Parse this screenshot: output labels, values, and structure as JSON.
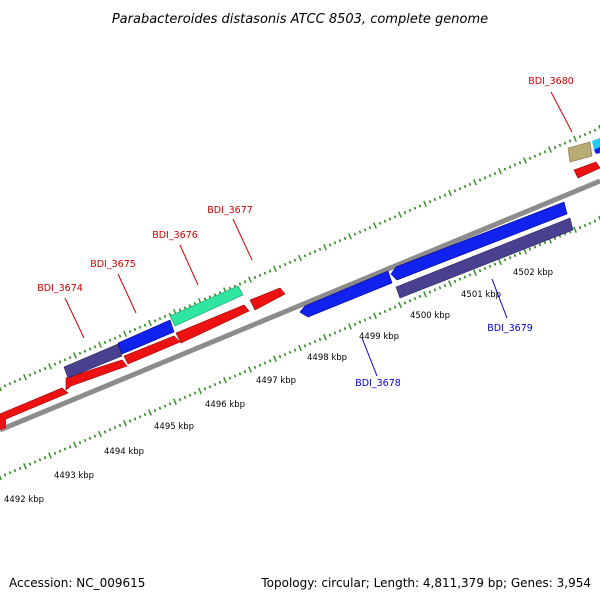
{
  "title": "Parabacteroides distasonis ATCC 8503, complete genome",
  "footer": {
    "accession": "Accession: NC_009615",
    "summary": "Topology: circular; Length: 4,811,379 bp; Genes: 3,954"
  },
  "colors": {
    "backbone": "#8c8c8c",
    "tick_dots": "#2e8b1e",
    "forward_label": "#cc0000",
    "reverse_label": "#0000cc",
    "cds_red": "#ee1111",
    "cds_blue": "#1122ee",
    "cds_slate": "#4a4090",
    "cds_green": "#2ee6a0",
    "cds_tan": "#b8ab74",
    "cds_cyan": "#22ccee"
  },
  "ticks": [
    {
      "label": "4492 kbp"
    },
    {
      "label": "4493 kbp"
    },
    {
      "label": "4494 kbp"
    },
    {
      "label": "4495 kbp"
    },
    {
      "label": "4496 kbp"
    },
    {
      "label": "4497 kbp"
    },
    {
      "label": "4498 kbp"
    },
    {
      "label": "4499 kbp"
    },
    {
      "label": "4500 kbp"
    },
    {
      "label": "4501 kbp"
    },
    {
      "label": "4502 kbp"
    }
  ],
  "gene_labels": {
    "bdi_3674": "BDI_3674",
    "bdi_3675": "BDI_3675",
    "bdi_3676": "BDI_3676",
    "bdi_3677": "BDI_3677",
    "bdi_3680": "BDI_3680",
    "bdi_3678": "BDI_3678",
    "bdi_3679": "BDI_3679"
  }
}
